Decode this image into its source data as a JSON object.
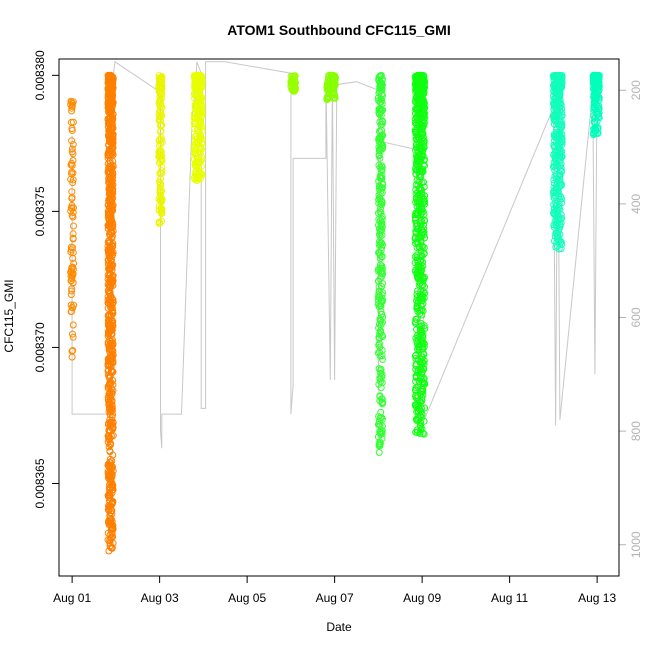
{
  "chart_data": {
    "type": "scatter",
    "title": "ATOM1 Southbound CFC115_GMI",
    "xlabel": "Date",
    "ylabel": "CFC115_GMI",
    "x_ticks": [
      "Aug 01",
      "Aug 03",
      "Aug 05",
      "Aug 07",
      "Aug 09",
      "Aug 11",
      "Aug 13"
    ],
    "x_tick_days": [
      1,
      3,
      5,
      7,
      9,
      11,
      13
    ],
    "xlim_days": [
      0.7,
      13.5
    ],
    "y_ticks": [
      0.008365,
      0.00837,
      0.008375,
      0.00838
    ],
    "y_tick_labels": [
      "0.008365",
      "0.008370",
      "0.008375",
      "0.008380"
    ],
    "ylim": [
      0.0083616,
      0.0083806
    ],
    "y2_label": "",
    "y2_ticks": [
      200,
      400,
      600,
      800,
      1000
    ],
    "y2_tick_labels": [
      "200",
      "400",
      "600",
      "800",
      "1000"
    ],
    "y2lim": [
      145,
      1055
    ],
    "y2_axis_color": "#b3b3b3",
    "marker": "open-circle",
    "grid": false,
    "legend": "none",
    "clusters": [
      {
        "name": "",
        "color": "#ff8c00",
        "x_day": 1.0,
        "y_top": 0.0083791,
        "y_bottom": 0.0083696,
        "width_days": 0.04,
        "density": "sparse"
      },
      {
        "name": "",
        "color": "#ff8000",
        "x_day": 1.88,
        "y_top": 0.00838,
        "y_bottom": 0.0083625,
        "width_days": 0.12,
        "density": "dense"
      },
      {
        "name": "",
        "color": "#ebf500",
        "x_day": 3.02,
        "y_top": 0.00838,
        "y_bottom": 0.0083745,
        "width_days": 0.08,
        "density": "medium"
      },
      {
        "name": "",
        "color": "#e8ff00",
        "x_day": 3.88,
        "y_top": 0.00838,
        "y_bottom": 0.0083761,
        "width_days": 0.18,
        "density": "dense"
      },
      {
        "name": "",
        "color": "#99ff00",
        "x_day": 6.05,
        "y_top": 0.00838,
        "y_bottom": 0.0083794,
        "width_days": 0.12,
        "density": "medium"
      },
      {
        "name": "",
        "color": "#88ff00",
        "x_day": 6.92,
        "y_top": 0.00838,
        "y_bottom": 0.0083791,
        "width_days": 0.2,
        "density": "dense"
      },
      {
        "name": "",
        "color": "#33ff33",
        "x_day": 8.05,
        "y_top": 0.00838,
        "y_bottom": 0.0083661,
        "width_days": 0.1,
        "density": "medium"
      },
      {
        "name": "",
        "color": "#11ff11",
        "x_day": 8.95,
        "y_top": 0.00838,
        "y_bottom": 0.0083668,
        "width_days": 0.22,
        "density": "dense"
      },
      {
        "name": "",
        "color": "#11ffbb",
        "x_day": 12.1,
        "y_top": 0.00838,
        "y_bottom": 0.0083735,
        "width_days": 0.2,
        "density": "dense"
      },
      {
        "name": "",
        "color": "#00ffbb",
        "x_day": 12.98,
        "y_top": 0.00838,
        "y_bottom": 0.0083778,
        "width_days": 0.14,
        "density": "dense"
      }
    ],
    "pressure_track": {
      "name": "",
      "color": "#c8c8c8",
      "points": [
        [
          1.0,
          280
        ],
        [
          1.0,
          770
        ],
        [
          1.9,
          770
        ],
        [
          1.9,
          200
        ],
        [
          1.98,
          150
        ],
        [
          2.95,
          200
        ],
        [
          3.02,
          210
        ],
        [
          3.02,
          800
        ],
        [
          3.05,
          830
        ],
        [
          3.05,
          770
        ],
        [
          3.5,
          770
        ],
        [
          3.75,
          240
        ],
        [
          3.82,
          200
        ],
        [
          3.85,
          150
        ],
        [
          3.95,
          170
        ],
        [
          3.95,
          760
        ],
        [
          4.05,
          760
        ],
        [
          4.05,
          150
        ],
        [
          4.5,
          150
        ],
        [
          6.0,
          170
        ],
        [
          6.0,
          770
        ],
        [
          6.05,
          720
        ],
        [
          6.05,
          320
        ],
        [
          6.8,
          320
        ],
        [
          6.8,
          170
        ],
        [
          6.9,
          710
        ],
        [
          6.95,
          180
        ],
        [
          7.0,
          710
        ],
        [
          7.05,
          190
        ],
        [
          7.5,
          185
        ],
        [
          8.0,
          200
        ],
        [
          8.0,
          730
        ],
        [
          8.05,
          290
        ],
        [
          8.9,
          305
        ],
        [
          8.9,
          800
        ],
        [
          8.95,
          740
        ],
        [
          9.0,
          190
        ],
        [
          9.05,
          780
        ],
        [
          12.0,
          230
        ],
        [
          12.05,
          790
        ],
        [
          12.1,
          190
        ],
        [
          12.15,
          780
        ],
        [
          12.9,
          200
        ],
        [
          12.95,
          700
        ],
        [
          13.0,
          180
        ]
      ]
    }
  }
}
